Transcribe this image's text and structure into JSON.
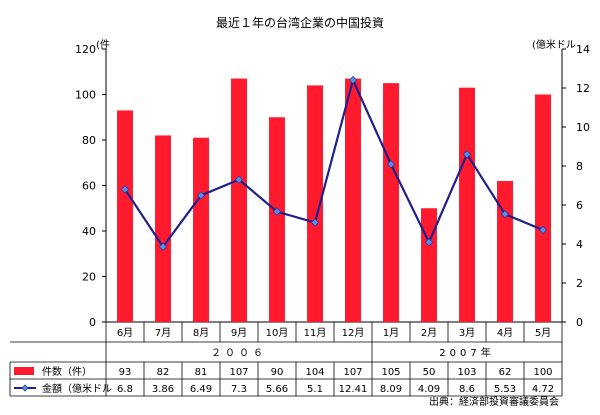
{
  "chart_data": {
    "type": "bar+line",
    "title": "最近１年の台湾企業の中国投資",
    "y_left_label": "(件",
    "y_right_label": "(億米ドル",
    "y_left_ticks": [
      "0",
      "20",
      "40",
      "60",
      "80",
      "100",
      "120"
    ],
    "y_right_ticks": [
      "0",
      "2",
      "4",
      "6",
      "8",
      "10",
      "12",
      "14"
    ],
    "ylim_left": [
      0,
      120
    ],
    "ylim_right": [
      0,
      14
    ],
    "categories": [
      "6月",
      "7月",
      "8月",
      "9月",
      "10月",
      "11月",
      "12月",
      "1月",
      "2月",
      "3月",
      "4月",
      "5月"
    ],
    "year_groups": [
      {
        "label": "２００６",
        "count": 7
      },
      {
        "label": "2007年",
        "count": 5
      }
    ],
    "series": [
      {
        "name": "件数（件）",
        "kind": "bar",
        "axis": "left",
        "color": "#ff1a2e",
        "values": [
          93,
          82,
          81,
          107,
          90,
          104,
          107,
          105,
          50,
          103,
          62,
          100
        ],
        "table_values": [
          "93",
          "82",
          "81",
          "107",
          "90",
          "104",
          "107",
          "105",
          "50",
          "103",
          "62",
          "100"
        ]
      },
      {
        "name": "金額（億米ドル",
        "kind": "line",
        "axis": "right",
        "color": "#1f1f8f",
        "marker_color": "#5b8ee6",
        "values": [
          6.8,
          3.86,
          6.49,
          7.3,
          5.66,
          5.1,
          12.41,
          8.09,
          4.09,
          8.6,
          5.53,
          4.72
        ],
        "table_values": [
          "6.8",
          "3.86",
          "6.49",
          "7.3",
          "5.66",
          "5.1",
          "12.41",
          "8.09",
          "4.09",
          "8.6",
          "5.53",
          "4.72"
        ]
      }
    ],
    "source": "出典：経済部投資審議委員会",
    "grid": false
  }
}
